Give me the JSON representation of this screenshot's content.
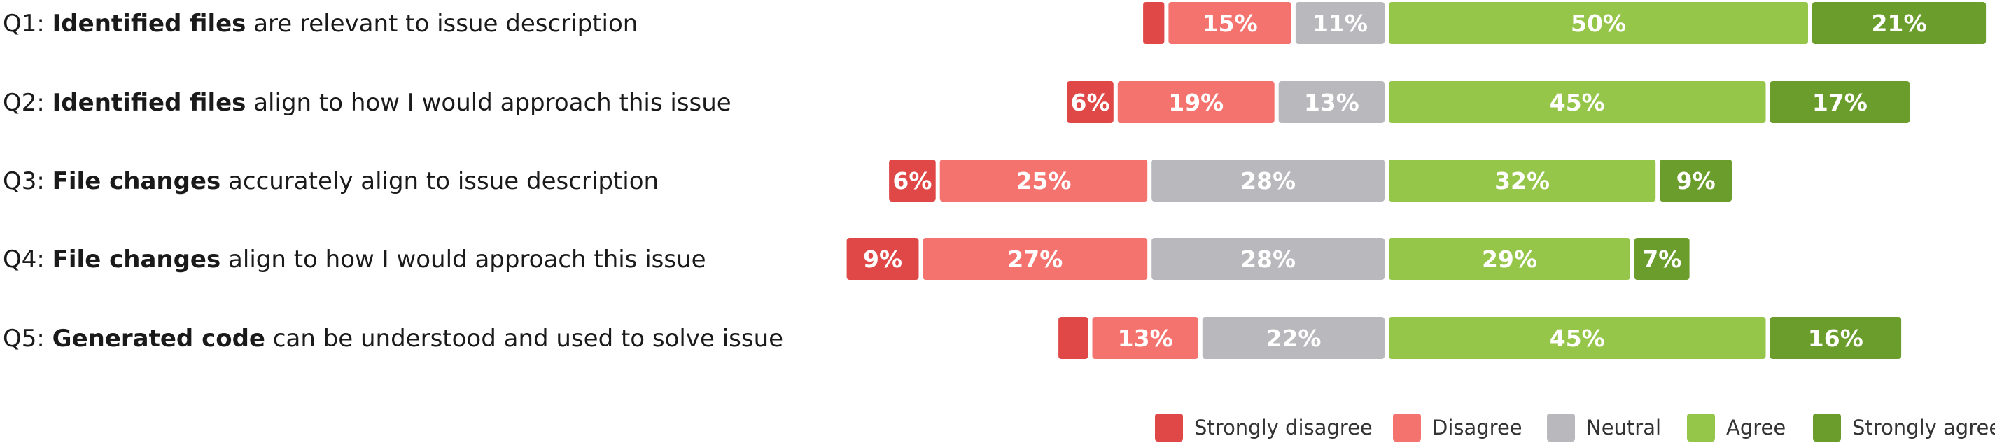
{
  "chart_data": {
    "type": "bar",
    "orientation": "horizontal",
    "stacked": "diverging",
    "legend_position": "bottom-right",
    "grid": false,
    "categories": [
      {
        "prefix": "Q1: ",
        "bold": "Identified files",
        "rest": " are relevant to issue description"
      },
      {
        "prefix": "Q2: ",
        "bold": "Identified files",
        "rest": " align to how I would approach this issue"
      },
      {
        "prefix": "Q3: ",
        "bold": "File changes",
        "rest": " accurately align to issue description"
      },
      {
        "prefix": "Q4: ",
        "bold": "File changes",
        "rest": " align to how I would approach this issue"
      },
      {
        "prefix": "Q5: ",
        "bold": "Generated code",
        "rest": " can be understood and used to solve issue"
      }
    ],
    "series": [
      {
        "name": "Strongly disagree",
        "color": "#e04848",
        "values": [
          3,
          6,
          6,
          9,
          4
        ],
        "labels": [
          "",
          "6%",
          "6%",
          "9%",
          ""
        ]
      },
      {
        "name": "Disagree",
        "color": "#f5736e",
        "values": [
          15,
          19,
          25,
          27,
          13
        ],
        "labels": [
          "15%",
          "19%",
          "25%",
          "27%",
          "13%"
        ]
      },
      {
        "name": "Neutral",
        "color": "#b8b8bd",
        "values": [
          11,
          13,
          28,
          28,
          22
        ],
        "labels": [
          "11%",
          "13%",
          "28%",
          "28%",
          "22%"
        ]
      },
      {
        "name": "Agree",
        "color": "#95c64a",
        "values": [
          50,
          45,
          32,
          29,
          45
        ],
        "labels": [
          "50%",
          "45%",
          "32%",
          "29%",
          "45%"
        ]
      },
      {
        "name": "Strongly agree",
        "color": "#6a9d2c",
        "values": [
          21,
          17,
          9,
          7,
          16
        ],
        "labels": [
          "21%",
          "17%",
          "9%",
          "7%",
          "16%"
        ]
      }
    ]
  }
}
